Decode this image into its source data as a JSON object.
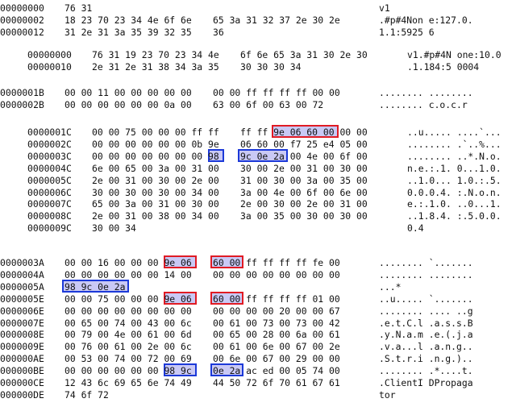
{
  "blocks": [
    {
      "name": "block-1",
      "lines": [
        {
          "off": "00000000",
          "h1": "76 31",
          "h2": "",
          "asc": "v1"
        },
        {
          "off": "00000002",
          "h1": "18 23 70 23 34 4e 6f 6e",
          "h2": "65 3a 31 32 37 2e 30 2e",
          "asc": ".#p#4Non e:127.0."
        },
        {
          "off": "00000012",
          "h1": "31 2e 31 3a 35 39 32 35",
          "h2": "36",
          "asc": "1.1:5925 6"
        }
      ]
    },
    {
      "name": "block-2",
      "lines": [
        {
          "off": "00000000",
          "h1": "76 31 19 23 70 23 34 4e",
          "h2": "6f 6e 65 3a 31 30 2e 30",
          "asc": "v1.#p#4N one:10.0"
        },
        {
          "off": "00000010",
          "h1": "2e 31 2e 31 38 34 3a 35",
          "h2": "30 30 30 34",
          "asc": ".1.184:5 0004"
        }
      ]
    },
    {
      "name": "block-3",
      "lines": [
        {
          "off": "0000001B",
          "h1": "00 00 11 00 00 00 00 00",
          "h2": "00 00 ff ff ff ff 00 00",
          "asc": "........ ........"
        },
        {
          "off": "0000002B",
          "h1": "00 00 00 00 00 00 0a 00",
          "h2": "63 00 6f 00 63 00 72",
          "asc": "........ c.o.c.r"
        }
      ]
    },
    {
      "name": "block-4",
      "lines": [
        {
          "off": "0000001C",
          "h1": "00 00 75 00 00 00 ff ff",
          "h2": "ff ff 9e 06 60 00 00 00",
          "asc": "..u..... ....`..."
        },
        {
          "off": "0000002C",
          "h1": "00 00 00 00 00 00 0b 9e",
          "h2": "06 60 00 f7 25 e4 05 00",
          "asc": "........ .`..%..."
        },
        {
          "off": "0000003C",
          "h1": "00 00 00 00 00 00 00 98",
          "h2": "9c 0e 2a 00 4e 00 6f 00",
          "asc": "........ ..*.N.o."
        },
        {
          "off": "0000004C",
          "h1": "6e 00 65 00 3a 00 31 00",
          "h2": "30 00 2e 00 31 00 30 00",
          "asc": "n.e.:.1. 0...1.0."
        },
        {
          "off": "0000005C",
          "h1": "2e 00 31 00 30 00 2e 00",
          "h2": "31 00 30 00 3a 00 35 00",
          "asc": "..1.0... 1.0.:.5."
        },
        {
          "off": "0000006C",
          "h1": "30 00 30 00 30 00 34 00",
          "h2": "3a 00 4e 00 6f 00 6e 00",
          "asc": "0.0.0.4. :.N.o.n."
        },
        {
          "off": "0000007C",
          "h1": "65 00 3a 00 31 00 30 00",
          "h2": "2e 00 30 00 2e 00 31 00",
          "asc": "e.:.1.0. ..0...1."
        },
        {
          "off": "0000008C",
          "h1": "2e 00 31 00 38 00 34 00",
          "h2": "3a 00 35 00 30 00 30 00",
          "asc": "..1.8.4. :.5.0.0."
        },
        {
          "off": "0000009C",
          "h1": "30 00 34",
          "h2": "",
          "asc": "0.4"
        }
      ]
    },
    {
      "name": "block-5",
      "lines": [
        {
          "off": "0000003A",
          "h1": "00 00 16 00 00 00 9e 06",
          "h2": "60 00 ff ff ff ff fe 00",
          "asc": "........ `......."
        },
        {
          "off": "0000004A",
          "h1": "00 00 00 00 00 00 14 00",
          "h2": "00 00 00 00 00 00 00 00",
          "asc": "........ ........"
        },
        {
          "off": "0000005A",
          "h1": "98 9c 0e 2a",
          "h2": "",
          "asc": "...*"
        },
        {
          "off": "0000005E",
          "h1": "00 00 75 00 00 00 9e 06",
          "h2": "60 00 ff ff ff ff 01 00",
          "asc": "..u..... `......."
        },
        {
          "off": "0000006E",
          "h1": "00 00 00 00 00 00 00 00",
          "h2": "00 00 00 00 20 00 00 67",
          "asc": "........ .... ..g"
        },
        {
          "off": "0000007E",
          "h1": "00 65 00 74 00 43 00 6c",
          "h2": "00 61 00 73 00 73 00 42",
          "asc": ".e.t.C.l .a.s.s.B"
        },
        {
          "off": "0000008E",
          "h1": "00 79 00 4e 00 61 00 6d",
          "h2": "00 65 00 28 00 6a 00 61",
          "asc": ".y.N.a.m .e.(.j.a"
        },
        {
          "off": "0000009E",
          "h1": "00 76 00 61 00 2e 00 6c",
          "h2": "00 61 00 6e 00 67 00 2e",
          "asc": ".v.a...l .a.n.g.."
        },
        {
          "off": "000000AE",
          "h1": "00 53 00 74 00 72 00 69",
          "h2": "00 6e 00 67 00 29 00 00",
          "asc": ".S.t.r.i .n.g.).."
        },
        {
          "off": "000000BE",
          "h1": "00 00 00 00 00 00 98 9c",
          "h2": "0e 2a ac ed 00 05 74 00",
          "asc": "........ .*....t."
        },
        {
          "off": "000000CE",
          "h1": "12 43 6c 69 65 6e 74 49",
          "h2": "44 50 72 6f 70 61 67 61",
          "asc": ".ClientI DPropaga"
        },
        {
          "off": "000000DE",
          "h1": "74 6f 72",
          "h2": "",
          "asc": "tor"
        }
      ]
    }
  ],
  "highlight_colors": {
    "red": "#e01b24",
    "blue": "#1c39d8",
    "fill": "#c9c9f5"
  }
}
